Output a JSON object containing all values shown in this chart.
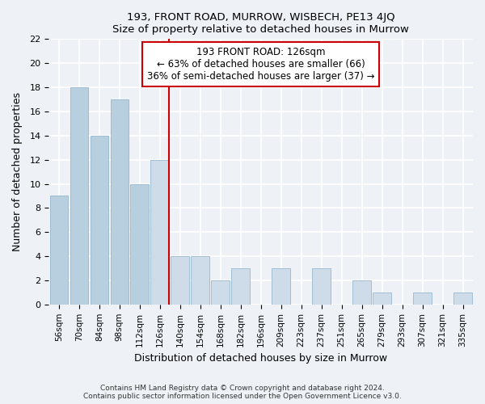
{
  "title": "193, FRONT ROAD, MURROW, WISBECH, PE13 4JQ",
  "subtitle": "Size of property relative to detached houses in Murrow",
  "xlabel": "Distribution of detached houses by size in Murrow",
  "ylabel": "Number of detached properties",
  "bar_labels": [
    "56sqm",
    "70sqm",
    "84sqm",
    "98sqm",
    "112sqm",
    "126sqm",
    "140sqm",
    "154sqm",
    "168sqm",
    "182sqm",
    "196sqm",
    "209sqm",
    "223sqm",
    "237sqm",
    "251sqm",
    "265sqm",
    "279sqm",
    "293sqm",
    "307sqm",
    "321sqm",
    "335sqm"
  ],
  "bar_values": [
    9,
    18,
    14,
    17,
    10,
    12,
    4,
    4,
    2,
    3,
    0,
    3,
    0,
    3,
    0,
    2,
    1,
    0,
    1,
    0,
    1
  ],
  "highlight_index": 5,
  "bar_color_left": "#b8cfe0",
  "bar_color_right": "#cddce8",
  "vline_color": "#cc0000",
  "annotation_title": "193 FRONT ROAD: 126sqm",
  "annotation_line1": "← 63% of detached houses are smaller (66)",
  "annotation_line2": "36% of semi-detached houses are larger (37) →",
  "annotation_box_facecolor": "#ffffff",
  "annotation_box_edgecolor": "#cc0000",
  "ylim": [
    0,
    22
  ],
  "yticks": [
    0,
    2,
    4,
    6,
    8,
    10,
    12,
    14,
    16,
    18,
    20,
    22
  ],
  "footer_line1": "Contains HM Land Registry data © Crown copyright and database right 2024.",
  "footer_line2": "Contains public sector information licensed under the Open Government Licence v3.0.",
  "bg_color": "#eef2f7",
  "grid_color": "#ffffff",
  "bar_edge_color": "#8aaec8"
}
